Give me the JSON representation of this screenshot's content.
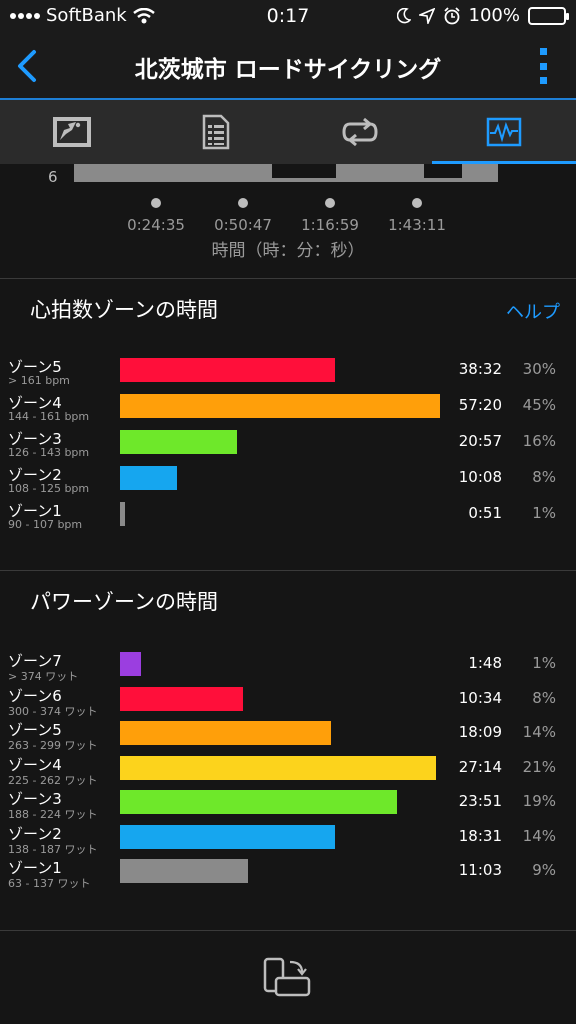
{
  "status_bar": {
    "carrier": "SoftBank",
    "time": "0:17",
    "battery": "100%",
    "icons": [
      "signal-icon",
      "wifi-icon",
      "moon-icon",
      "location-icon",
      "alarm-icon",
      "battery-icon"
    ]
  },
  "nav": {
    "title": "北茨城市 ロードサイクリング",
    "icons": [
      "back-chevron-icon",
      "more-icon"
    ]
  },
  "tabs": [
    {
      "icon": "map-icon",
      "active": false
    },
    {
      "icon": "details-icon",
      "active": false
    },
    {
      "icon": "laps-icon",
      "active": false
    },
    {
      "icon": "charts-icon",
      "active": true
    }
  ],
  "chart_remnant": {
    "y_label": "6",
    "ticks": [
      "0:24:35",
      "0:50:47",
      "1:16:59",
      "1:43:11"
    ],
    "x_label": "時間（時：分：秒）"
  },
  "hr_section": {
    "title": "心拍数ゾーンの時間",
    "help": "ヘルプ",
    "chart_data": {
      "type": "bar",
      "categories": [
        "ゾーン5",
        "ゾーン4",
        "ゾーン3",
        "ゾーン2",
        "ゾーン1"
      ],
      "ranges": [
        "> 161 bpm",
        "144 - 161 bpm",
        "126 - 143 bpm",
        "108 - 125 bpm",
        "90 - 107 bpm"
      ],
      "times": [
        "38:32",
        "57:20",
        "20:57",
        "10:08",
        "0:51"
      ],
      "percents": [
        "30%",
        "45%",
        "16%",
        "8%",
        "1%"
      ],
      "values_seconds": [
        2312,
        3440,
        1257,
        608,
        51
      ],
      "colors": [
        "#ff0f3a",
        "#ff9f0a",
        "#6ee82a",
        "#16a6ef",
        "#8a8a8a"
      ]
    }
  },
  "power_section": {
    "title": "パワーゾーンの時間",
    "chart_data": {
      "type": "bar",
      "categories": [
        "ゾーン7",
        "ゾーン6",
        "ゾーン5",
        "ゾーン4",
        "ゾーン3",
        "ゾーン2",
        "ゾーン1"
      ],
      "ranges": [
        "> 374 ワット",
        "300 - 374 ワット",
        "263 - 299 ワット",
        "225 - 262 ワット",
        "188 - 224 ワット",
        "138 - 187 ワット",
        "63 - 137 ワット"
      ],
      "times": [
        "1:48",
        "10:34",
        "18:09",
        "27:14",
        "23:51",
        "18:31",
        "11:03"
      ],
      "percents": [
        "1%",
        "8%",
        "14%",
        "21%",
        "19%",
        "14%",
        "9%"
      ],
      "values_seconds": [
        108,
        634,
        1089,
        1634,
        1431,
        1111,
        663
      ],
      "colors": [
        "#9b3ee0",
        "#ff0f3a",
        "#ff9f0a",
        "#fcd31c",
        "#6ee82a",
        "#16a6ef",
        "#8a8a8a"
      ]
    }
  },
  "bottom": {
    "icon": "rotate-device-icon"
  }
}
